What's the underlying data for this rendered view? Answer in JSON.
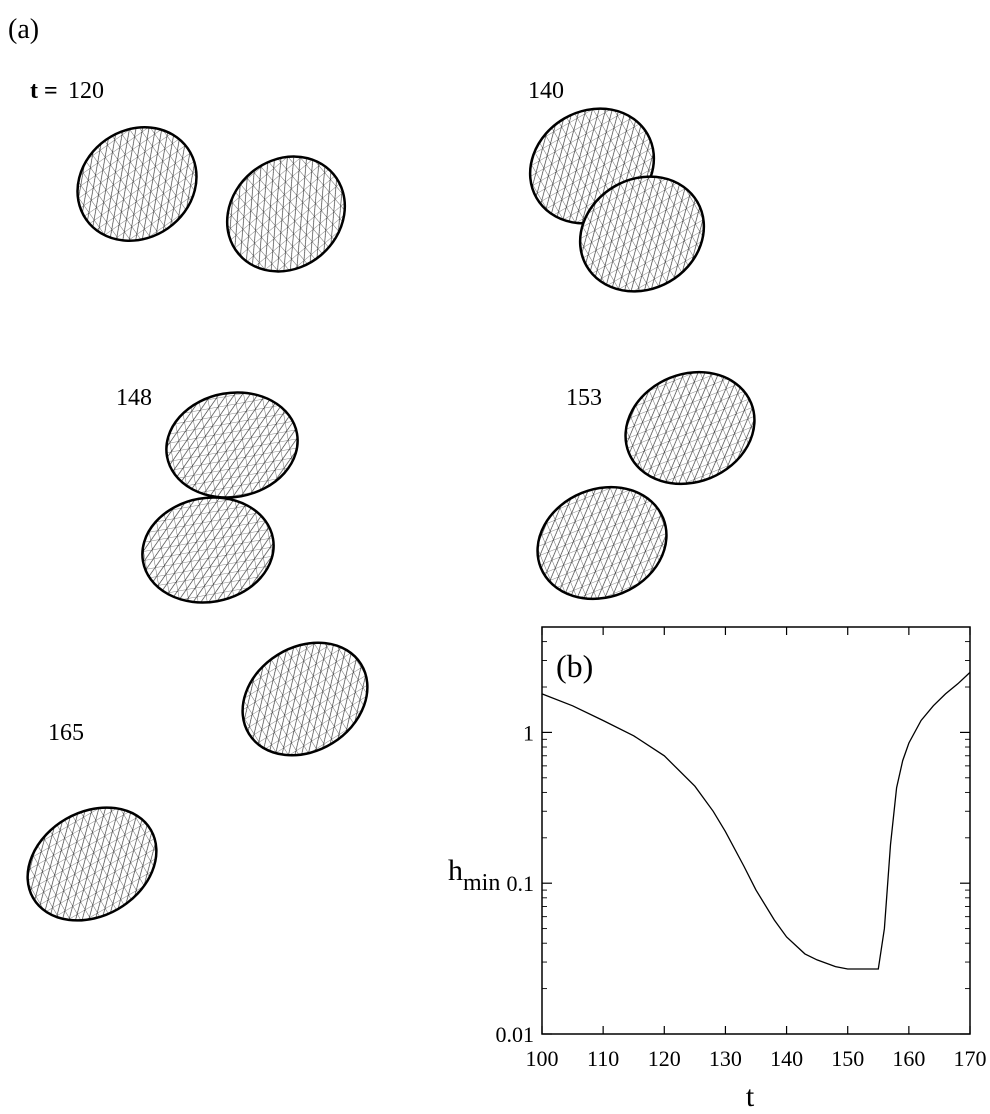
{
  "figure": {
    "panel_a_label": "(a)",
    "t_prefix": "t =",
    "snapshots": [
      {
        "label": "120"
      },
      {
        "label": "140"
      },
      {
        "label": "148"
      },
      {
        "label": "153"
      },
      {
        "label": "165"
      }
    ]
  },
  "chart_data": {
    "type": "line",
    "panel_label": "(b)",
    "xlabel": "t",
    "ylabel_main": "h",
    "ylabel_sub": "min",
    "x_scale": "linear",
    "y_scale": "log",
    "xlim": [
      100,
      170
    ],
    "ylim": [
      0.01,
      5
    ],
    "x_ticks": [
      100,
      110,
      120,
      130,
      140,
      150,
      160,
      170
    ],
    "x_tick_labels": [
      "100",
      "110",
      "120",
      "130",
      "140",
      "150",
      "160",
      "170"
    ],
    "y_ticks": [
      0.01,
      0.1,
      1
    ],
    "y_tick_labels": [
      "0.01",
      "0.1",
      "1"
    ],
    "grid": false,
    "series": [
      {
        "x": [
          100,
          105,
          110,
          115,
          120,
          125,
          128,
          130,
          133,
          135,
          138,
          140,
          143,
          145,
          148,
          150,
          152,
          155,
          156,
          157,
          158,
          159,
          160,
          162,
          164,
          166,
          168,
          170
        ],
        "y": [
          1.8,
          1.5,
          1.2,
          0.95,
          0.7,
          0.44,
          0.3,
          0.22,
          0.13,
          0.09,
          0.057,
          0.044,
          0.034,
          0.031,
          0.028,
          0.027,
          0.027,
          0.027,
          0.05,
          0.18,
          0.43,
          0.65,
          0.85,
          1.2,
          1.5,
          1.8,
          2.1,
          2.5
        ]
      }
    ]
  }
}
